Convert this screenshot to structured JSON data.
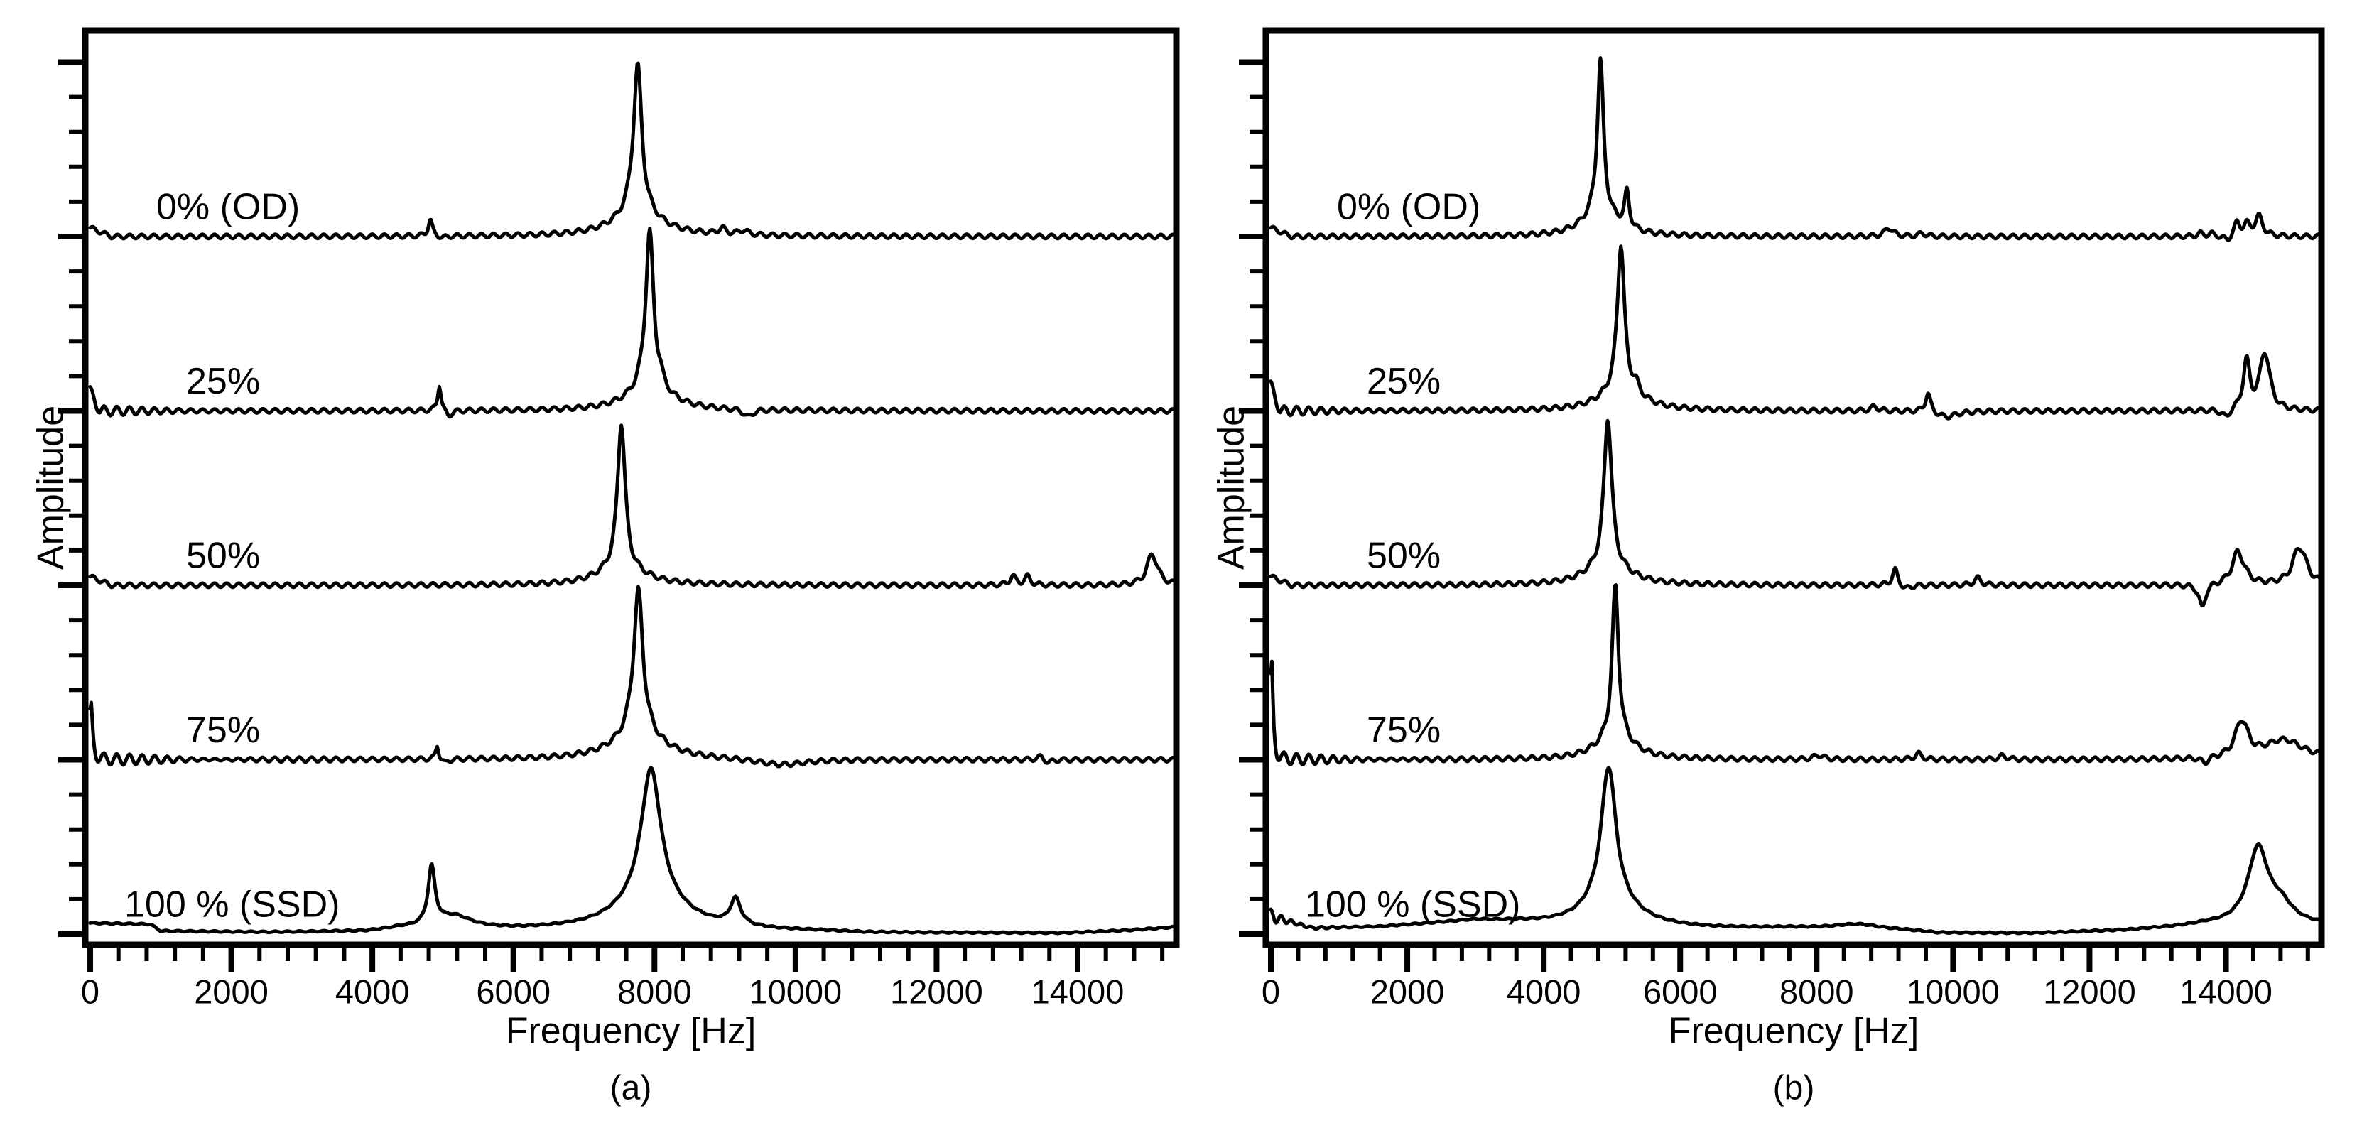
{
  "figure": {
    "background": "#ffffff",
    "ink": "#000000",
    "description": "Two-panel waterfall plot of vibration spectra at five damage levels"
  },
  "chart_data": {
    "type": "line",
    "xlabel": "Frequency [Hz]",
    "ylabel": "Amplitude",
    "xlim": [
      0,
      15400
    ],
    "xticks": [
      0,
      2000,
      4000,
      6000,
      8000,
      10000,
      12000,
      14000
    ],
    "xtick_minor_step": 400,
    "ytick_minor_per_major": 4,
    "grid": false,
    "legend": "none",
    "y_axis_numeric_labels": false,
    "trace_offset_unit": "one major y-division per trace, amplitudes below given as fraction of that division",
    "peak_format": "[center_Hz, height_fraction_of_division, half_width_Hz]",
    "panels": [
      {
        "caption": "(a)",
        "traces": [
          {
            "label": "0% (OD)",
            "row": 0,
            "label_dx": 100,
            "drift": [
              [
                0,
                0.05
              ],
              [
                300,
                0
              ]
            ],
            "peaks": [
              [
                4820,
                0.095,
                35
              ],
              [
                5000,
                -0.012,
                60
              ],
              [
                7760,
                0.85,
                75
              ],
              [
                7760,
                0.12,
                420
              ],
              [
                8960,
                0.033,
                60
              ],
              [
                9260,
                0.026,
                80
              ]
            ]
          },
          {
            "label": "25%",
            "row": 1,
            "label_dx": 142,
            "ring": {
              "a": 0.028,
              "p": 185,
              "d": 600
            },
            "drift": [
              [
                0,
                0.11
              ],
              [
                140,
                0
              ]
            ],
            "peaks": [
              [
                4950,
                0.16,
                28
              ],
              [
                5080,
                -0.035,
                55
              ],
              [
                7930,
                0.9,
                70
              ],
              [
                7930,
                0.115,
                380
              ],
              [
                8080,
                0.045,
                45
              ],
              [
                9330,
                -0.045,
                70
              ]
            ]
          },
          {
            "label": "50%",
            "row": 2,
            "label_dx": 142,
            "drift": [
              [
                0,
                0.05
              ],
              [
                300,
                0
              ]
            ],
            "peaks": [
              [
                7530,
                0.855,
                62
              ],
              [
                7530,
                0.105,
                360
              ],
              [
                13080,
                0.052,
                50
              ],
              [
                13290,
                0.048,
                50
              ],
              [
                15060,
                0.18,
                90
              ]
            ]
          },
          {
            "label": "75%",
            "row": 3,
            "label_dx": 142,
            "ring": {
              "a": 0.03,
              "p": 185,
              "d": 1100
            },
            "peaks": [
              [
                10,
                0.3,
                26
              ],
              [
                4920,
                0.085,
                25
              ],
              [
                5030,
                -0.025,
                50
              ],
              [
                7770,
                0.825,
                85
              ],
              [
                7770,
                0.13,
                450
              ],
              [
                9800,
                -0.035,
                420
              ],
              [
                13480,
                0.02,
                60
              ],
              [
                13590,
                -0.02,
                60
              ]
            ]
          },
          {
            "label": "100 % (SSD)",
            "row": 4,
            "label_dx": 55,
            "ripple": 0.8,
            "drift": [
              [
                0,
                0.062
              ],
              [
                850,
                0.055
              ],
              [
                1000,
                0.016
              ],
              [
                2500,
                0.009
              ],
              [
                3900,
                0.012
              ],
              [
                4400,
                0.03
              ],
              [
                6000,
                0.02
              ],
              [
                10300,
                0.012
              ],
              [
                11000,
                0.005
              ],
              [
                13800,
                0.005
              ],
              [
                14700,
                0.02
              ],
              [
                15400,
                0.04
              ]
            ],
            "peaks": [
              [
                4840,
                0.33,
                60
              ],
              [
                5160,
                0.07,
                300
              ],
              [
                7950,
                0.77,
                170
              ],
              [
                7950,
                0.163,
                600
              ],
              [
                9150,
                0.15,
                90
              ]
            ]
          }
        ]
      },
      {
        "caption": "(b)",
        "traces": [
          {
            "label": "0% (OD)",
            "row": 0,
            "label_dx": 100,
            "drift": [
              [
                0,
                0.05
              ],
              [
                300,
                0
              ]
            ],
            "peaks": [
              [
                4830,
                0.87,
                55
              ],
              [
                4830,
                0.13,
                300
              ],
              [
                5220,
                0.2,
                42
              ],
              [
                9060,
                0.05,
                70
              ],
              [
                9550,
                0.018,
                60
              ],
              [
                13620,
                0.016,
                50
              ],
              [
                13780,
                0.016,
                50
              ],
              [
                14020,
                -0.033,
                60
              ],
              [
                14160,
                0.072,
                55
              ],
              [
                14300,
                0.06,
                55
              ],
              [
                14480,
                0.112,
                70
              ]
            ]
          },
          {
            "label": "25%",
            "row": 1,
            "label_dx": 142,
            "ring": {
              "a": 0.03,
              "p": 185,
              "d": 500
            },
            "drift": [
              [
                0,
                0.14
              ],
              [
                140,
                0
              ]
            ],
            "peaks": [
              [
                5130,
                0.86,
                60
              ],
              [
                5130,
                0.12,
                350
              ],
              [
                5350,
                0.05,
                60
              ],
              [
                8850,
                0.025,
                60
              ],
              [
                9630,
                0.112,
                45
              ],
              [
                9900,
                -0.036,
                180
              ],
              [
                14000,
                -0.05,
                70
              ],
              [
                14300,
                0.27,
                60
              ],
              [
                14570,
                0.34,
                85
              ]
            ]
          },
          {
            "label": "50%",
            "row": 2,
            "label_dx": 142,
            "drift": [
              [
                0,
                0.05
              ],
              [
                300,
                0
              ]
            ],
            "peaks": [
              [
                4940,
                0.875,
                65
              ],
              [
                4940,
                0.115,
                350
              ],
              [
                9150,
                0.09,
                50
              ],
              [
                9310,
                -0.025,
                80
              ],
              [
                10360,
                0.04,
                60
              ],
              [
                13650,
                -0.14,
                55
              ],
              [
                14180,
                0.19,
                110
              ],
              [
                15080,
                0.22,
                120
              ]
            ]
          },
          {
            "label": "75%",
            "row": 3,
            "label_dx": 142,
            "ring": {
              "a": 0.034,
              "p": 185,
              "d": 800
            },
            "peaks": [
              [
                10,
                0.54,
                24
              ],
              [
                5050,
                0.86,
                58
              ],
              [
                5050,
                0.12,
                320
              ],
              [
                8030,
                0.025,
                80
              ],
              [
                9490,
                0.033,
                60
              ],
              [
                10730,
                0.02,
                70
              ],
              [
                13690,
                -0.033,
                70
              ],
              [
                14230,
                0.21,
                110
              ],
              [
                14850,
                0.11,
                350
              ]
            ]
          },
          {
            "label": "100 % (SSD)",
            "row": 4,
            "label_dx": 55,
            "ripple": 0.8,
            "ring": {
              "a": 0.04,
              "p": 150,
              "d": 300
            },
            "drift": [
              [
                0,
                0.1
              ],
              [
                600,
                0.033
              ],
              [
                1600,
                0.04
              ],
              [
                3000,
                0.075
              ],
              [
                3650,
                0.062
              ],
              [
                4500,
                0.03
              ],
              [
                6500,
                0.028
              ],
              [
                7600,
                0.033
              ],
              [
                9300,
                0.018
              ],
              [
                9800,
                0.004
              ],
              [
                11200,
                0.004
              ],
              [
                12500,
                0.02
              ],
              [
                13300,
                0.04
              ],
              [
                13700,
                0.053
              ],
              [
                15400,
                0.05
              ]
            ],
            "peaks": [
              [
                4950,
                0.785,
                130
              ],
              [
                4950,
                0.15,
                500
              ],
              [
                8600,
                0.03,
                400
              ],
              [
                14470,
                0.43,
                180
              ],
              [
                14800,
                0.1,
                220
              ]
            ]
          }
        ]
      }
    ]
  }
}
